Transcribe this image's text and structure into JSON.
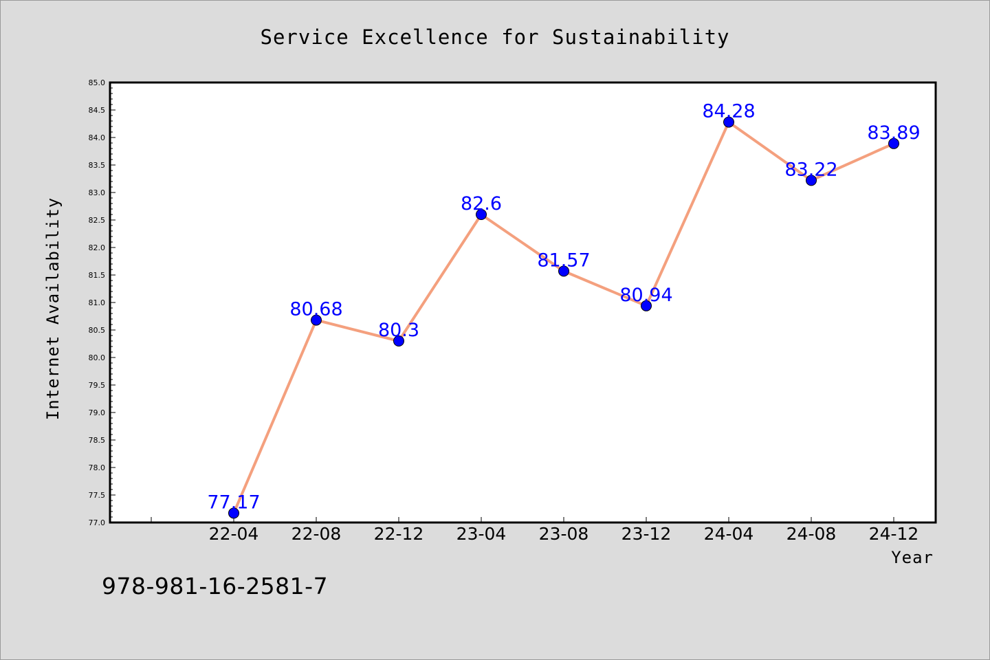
{
  "chart_data": {
    "type": "line",
    "title": "Service Excellence for Sustainability",
    "xlabel": "Year",
    "ylabel": "Internet Availability",
    "categories": [
      "22-04",
      "22-08",
      "22-12",
      "23-04",
      "23-08",
      "23-12",
      "24-04",
      "24-08",
      "24-12"
    ],
    "series": [
      {
        "values": [
          77.17,
          80.68,
          80.3,
          82.6,
          81.57,
          80.94,
          84.28,
          83.22,
          83.89
        ],
        "line_color": "#f4a07e",
        "marker_color": "#0000ff"
      }
    ],
    "data_labels": [
      "77.17",
      "80.68",
      "80.3",
      "82.6",
      "81.57",
      "80.94",
      "84.28",
      "83.22",
      "83.89"
    ],
    "ylim": [
      77.0,
      85.0
    ],
    "yticks": [
      "77.0",
      "77.5",
      "78.0",
      "78.5",
      "79.0",
      "79.5",
      "80.0",
      "80.5",
      "81.0",
      "81.5",
      "82.0",
      "82.5",
      "83.0",
      "83.5",
      "84.0",
      "84.5",
      "85.0"
    ],
    "grid": false,
    "legend": "none"
  },
  "footer": {
    "isbn": "978-981-16-2581-7"
  },
  "colors": {
    "background": "#dcdcdc",
    "plot_background": "#ffffff",
    "line": "#f4a07e",
    "marker": "#0000ff",
    "data_label": "#0000ff"
  }
}
